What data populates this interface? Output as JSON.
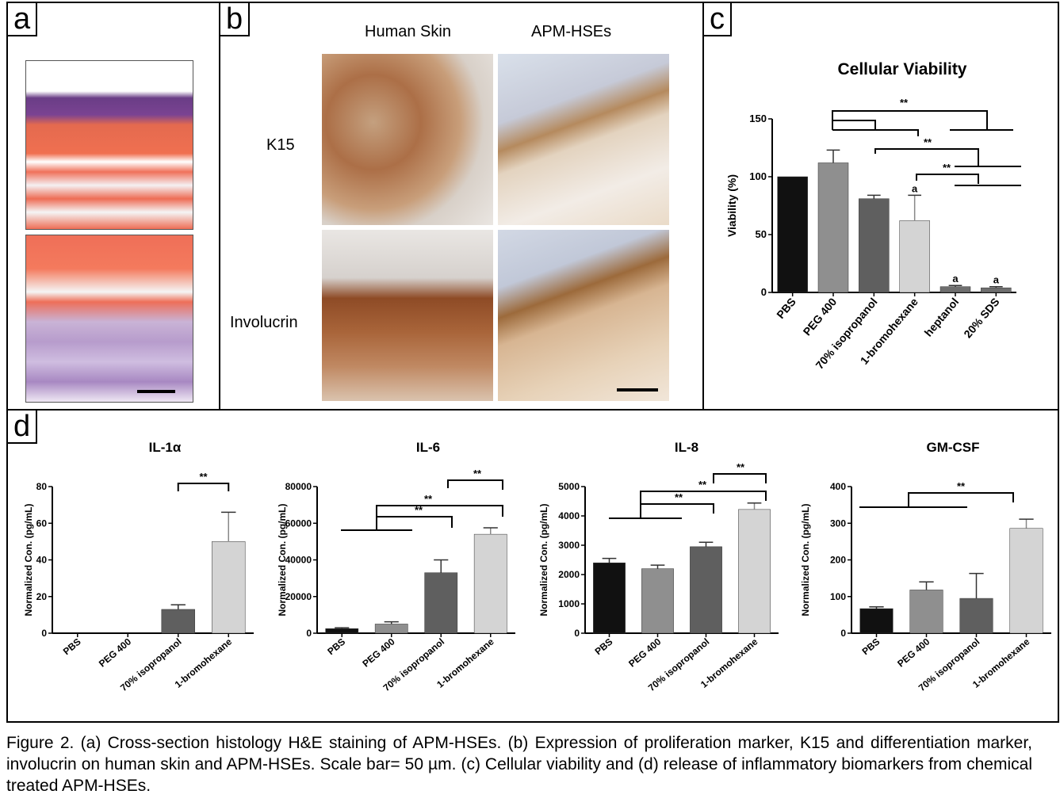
{
  "panel_labels": {
    "a": "a",
    "b": "b",
    "c": "c",
    "d": "d"
  },
  "panel_b": {
    "col_headers": [
      "Human Skin",
      "APM-HSEs"
    ],
    "row_labels": [
      "K15",
      "Involucrin"
    ]
  },
  "caption": "Figure 2. (a) Cross-section histology H&E staining of APM-HSEs. (b) Expression of proliferation marker, K15 and differentiation marker, involucrin on human skin and APM-HSEs. Scale bar= 50 µm. (c) Cellular viability and (d) release of inflammatory biomarkers from chemical treated APM-HSEs.",
  "chart_data": [
    {
      "id": "viability",
      "type": "bar",
      "title": "Cellular Viability",
      "ylabel": "Viability (%)",
      "xlabel": "",
      "categories": [
        "PBS",
        "PEG 400",
        "70% isopropanol",
        "1-bromohexane",
        "heptanol",
        "20% SDS"
      ],
      "values": [
        100,
        112,
        81,
        62,
        5,
        4
      ],
      "errors": [
        0,
        11,
        3,
        22,
        1,
        1
      ],
      "colors": [
        "#111111",
        "#8f8f8f",
        "#5f5f5f",
        "#d4d4d4",
        "#6e6e6e",
        "#6e6e6e"
      ],
      "ylim": [
        0,
        150
      ],
      "yticks": [
        0,
        50,
        100,
        150
      ],
      "bar_annotations": [
        "",
        "",
        "",
        "a",
        "a",
        "a"
      ],
      "significance": "**"
    },
    {
      "id": "il1a",
      "type": "bar",
      "title": "IL-1α",
      "ylabel": "Normalized Con. (pg/mL)",
      "categories": [
        "PBS",
        "PEG 400",
        "70% isopropanol",
        "1-bromohexane"
      ],
      "values": [
        0,
        0,
        13,
        50
      ],
      "errors": [
        0,
        0,
        2.5,
        16
      ],
      "colors": [
        "#111111",
        "#8f8f8f",
        "#5f5f5f",
        "#d4d4d4"
      ],
      "ylim": [
        0,
        80
      ],
      "yticks": [
        0,
        20,
        40,
        60,
        80
      ],
      "significance": "**"
    },
    {
      "id": "il6",
      "type": "bar",
      "title": "IL-6",
      "ylabel": "Normalized Con. (pg/mL)",
      "categories": [
        "PBS",
        "PEG 400",
        "70% isopropanol",
        "1-bromohexane"
      ],
      "values": [
        2500,
        5000,
        33000,
        54000
      ],
      "errors": [
        500,
        1200,
        7000,
        3500
      ],
      "colors": [
        "#111111",
        "#8f8f8f",
        "#5f5f5f",
        "#d4d4d4"
      ],
      "ylim": [
        0,
        80000
      ],
      "yticks": [
        0,
        20000,
        40000,
        60000,
        80000
      ],
      "significance": "**"
    },
    {
      "id": "il8",
      "type": "bar",
      "title": "IL-8",
      "ylabel": "Normalized Con. (pg/mL)",
      "categories": [
        "PBS",
        "PEG 400",
        "70% isopropanol",
        "1-bromohexane"
      ],
      "values": [
        2400,
        2200,
        2950,
        4220
      ],
      "errors": [
        150,
        120,
        150,
        220
      ],
      "colors": [
        "#111111",
        "#8f8f8f",
        "#5f5f5f",
        "#d4d4d4"
      ],
      "ylim": [
        0,
        5000
      ],
      "yticks": [
        0,
        1000,
        2000,
        3000,
        4000,
        5000
      ],
      "significance": "**"
    },
    {
      "id": "gmcsf",
      "type": "bar",
      "title": "GM-CSF",
      "ylabel": "Normalized Con. (pg/mL)",
      "categories": [
        "PBS",
        "PEG 400",
        "70% isopropanol",
        "1-bromohexane"
      ],
      "values": [
        67,
        118,
        95,
        286
      ],
      "errors": [
        5,
        22,
        68,
        25
      ],
      "colors": [
        "#111111",
        "#8f8f8f",
        "#5f5f5f",
        "#d4d4d4"
      ],
      "ylim": [
        0,
        400
      ],
      "yticks": [
        0,
        100,
        200,
        300,
        400
      ],
      "significance": "**"
    }
  ]
}
